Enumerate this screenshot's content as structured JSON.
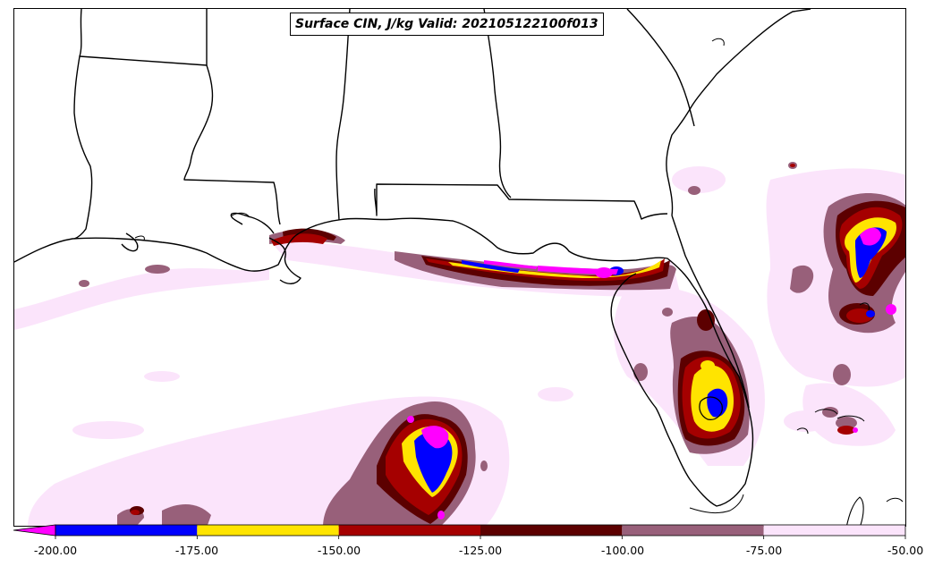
{
  "map": {
    "title": "Surface CIN, J/kg Valid: 202105122100f013",
    "region": "Gulf of Mexico / Southeast US",
    "background_color": "#ffffff",
    "boundary_color": "#000000"
  },
  "colorbar": {
    "min": -200,
    "max": -50,
    "extend": "min",
    "under_color": "#ff00ff",
    "bins": [
      {
        "from": -200,
        "to": -175,
        "color": "#0000ff"
      },
      {
        "from": -175,
        "to": -150,
        "color": "#ffe400"
      },
      {
        "from": -150,
        "to": -125,
        "color": "#a50000"
      },
      {
        "from": -125,
        "to": -100,
        "color": "#5c0000"
      },
      {
        "from": -100,
        "to": -75,
        "color": "#98607a"
      },
      {
        "from": -75,
        "to": -50,
        "color": "#fbe4fb"
      }
    ],
    "tick_labels": [
      "-200.00",
      "-175.00",
      "-150.00",
      "-125.00",
      "-100.00",
      "-75.00",
      "-50.00"
    ]
  }
}
